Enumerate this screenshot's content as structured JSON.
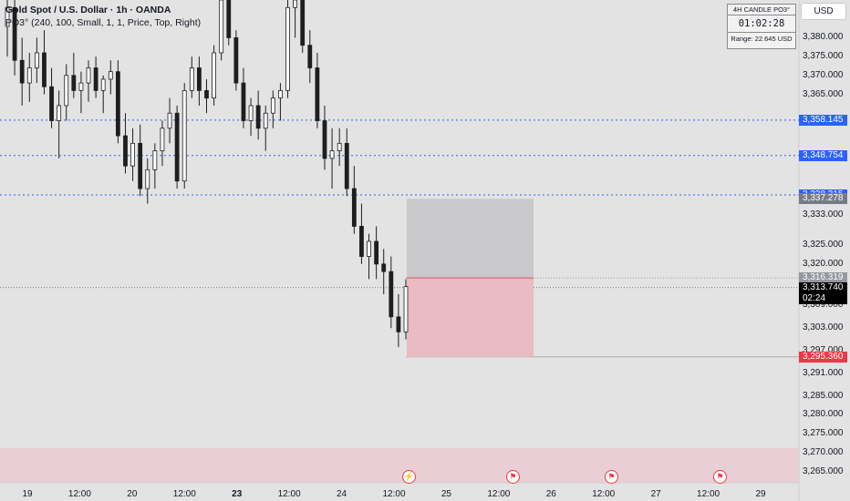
{
  "legend": {
    "symbol_line": "Gold Spot / U.S. Dollar · 1h · OANDA",
    "indicator_line": "PO3° (240, 100, Small, 1, 1, Price, Top, Right)"
  },
  "currency": "USD",
  "info_box": {
    "title": "4H CANDLE PO3°",
    "timer": "01:02:28",
    "range": "Range: 22.645 USD"
  },
  "price_scale": {
    "ticks": [
      "3,380.000",
      "3,375.000",
      "3,370.000",
      "3,365.000",
      "3,333.000",
      "3,325.000",
      "3,320.000",
      "3,309.000",
      "3,303.000",
      "3,297.000",
      "3,291.000",
      "3,285.000",
      "3,280.000",
      "3,275.000",
      "3,270.000",
      "3,265.000"
    ],
    "tags": [
      {
        "label": "3,358.145",
        "color": "#2962ff"
      },
      {
        "label": "3,348.754",
        "color": "#2962ff"
      },
      {
        "label": "3,338.315",
        "color": "#2962ff"
      },
      {
        "label": "3,337.278",
        "color": "#787b86"
      },
      {
        "label": "3,316.319",
        "color": "#9598a1"
      },
      {
        "label": "3,313.740",
        "sub": "02:24",
        "color": "#000000"
      },
      {
        "label": "3,295.360",
        "color": "#f23645"
      }
    ]
  },
  "time_axis": [
    "19",
    "12:00",
    "20",
    "12:00",
    "23",
    "12:00",
    "24",
    "12:00",
    "25",
    "12:00",
    "26",
    "12:00",
    "27",
    "12:00",
    "29"
  ],
  "events": [
    {
      "icon": "flash-icon",
      "color": "#f23645"
    },
    {
      "icon": "us-flag-icon",
      "color": "#f23645"
    },
    {
      "icon": "us-flag-icon",
      "color": "#f23645"
    },
    {
      "icon": "us-flag-icon",
      "color": "#f23645"
    }
  ],
  "chart_data": {
    "type": "candlestick",
    "instrument": "Gold Spot / U.S. Dollar",
    "timeframe": "1h",
    "broker": "OANDA",
    "ylim": [
      3262,
      3390
    ],
    "horizontal_levels": [
      3358.145,
      3348.754,
      3338.315
    ],
    "position_box": {
      "entry": 3316.319,
      "target": 3337.278,
      "stop": 3295.36
    },
    "current_price": 3313.74,
    "candles": [
      [
        3383,
        3392,
        3375,
        3388
      ],
      [
        3388,
        3391,
        3370,
        3374
      ],
      [
        3374,
        3380,
        3362,
        3368
      ],
      [
        3368,
        3376,
        3363,
        3372
      ],
      [
        3372,
        3380,
        3368,
        3376
      ],
      [
        3376,
        3382,
        3365,
        3367
      ],
      [
        3367,
        3372,
        3356,
        3358
      ],
      [
        3358,
        3366,
        3348,
        3362
      ],
      [
        3362,
        3373,
        3358,
        3370
      ],
      [
        3370,
        3376,
        3364,
        3366
      ],
      [
        3366,
        3371,
        3360,
        3368
      ],
      [
        3368,
        3374,
        3363,
        3372
      ],
      [
        3372,
        3375,
        3364,
        3366
      ],
      [
        3366,
        3370,
        3360,
        3369
      ],
      [
        3369,
        3374,
        3365,
        3371
      ],
      [
        3371,
        3374,
        3352,
        3354
      ],
      [
        3354,
        3360,
        3344,
        3346
      ],
      [
        3346,
        3356,
        3342,
        3352
      ],
      [
        3352,
        3357,
        3338,
        3340
      ],
      [
        3340,
        3348,
        3336,
        3345
      ],
      [
        3345,
        3352,
        3340,
        3350
      ],
      [
        3350,
        3358,
        3346,
        3356
      ],
      [
        3356,
        3364,
        3352,
        3360
      ],
      [
        3360,
        3362,
        3340,
        3342
      ],
      [
        3342,
        3368,
        3340,
        3366
      ],
      [
        3366,
        3375,
        3364,
        3372
      ],
      [
        3372,
        3375,
        3362,
        3366
      ],
      [
        3366,
        3369,
        3360,
        3364
      ],
      [
        3364,
        3378,
        3362,
        3376
      ],
      [
        3376,
        3394,
        3374,
        3390
      ],
      [
        3390,
        3395,
        3378,
        3380
      ],
      [
        3380,
        3382,
        3366,
        3368
      ],
      [
        3368,
        3372,
        3356,
        3358
      ],
      [
        3358,
        3364,
        3354,
        3362
      ],
      [
        3362,
        3366,
        3353,
        3356
      ],
      [
        3356,
        3362,
        3350,
        3360
      ],
      [
        3360,
        3366,
        3356,
        3364
      ],
      [
        3364,
        3368,
        3358,
        3366
      ],
      [
        3366,
        3392,
        3364,
        3388
      ],
      [
        3388,
        3394,
        3380,
        3390
      ],
      [
        3390,
        3394,
        3376,
        3378
      ],
      [
        3378,
        3382,
        3368,
        3372
      ],
      [
        3372,
        3376,
        3356,
        3358
      ],
      [
        3358,
        3362,
        3345,
        3348
      ],
      [
        3348,
        3356,
        3340,
        3350
      ],
      [
        3350,
        3356,
        3346,
        3352
      ],
      [
        3352,
        3356,
        3338,
        3340
      ],
      [
        3340,
        3346,
        3328,
        3330
      ],
      [
        3330,
        3336,
        3320,
        3322
      ],
      [
        3322,
        3328,
        3316,
        3326
      ],
      [
        3326,
        3330,
        3316,
        3320
      ],
      [
        3320,
        3324,
        3312,
        3318
      ],
      [
        3318,
        3322,
        3303,
        3306
      ],
      [
        3306,
        3312,
        3298,
        3302
      ],
      [
        3302,
        3316,
        3300,
        3314
      ]
    ]
  }
}
